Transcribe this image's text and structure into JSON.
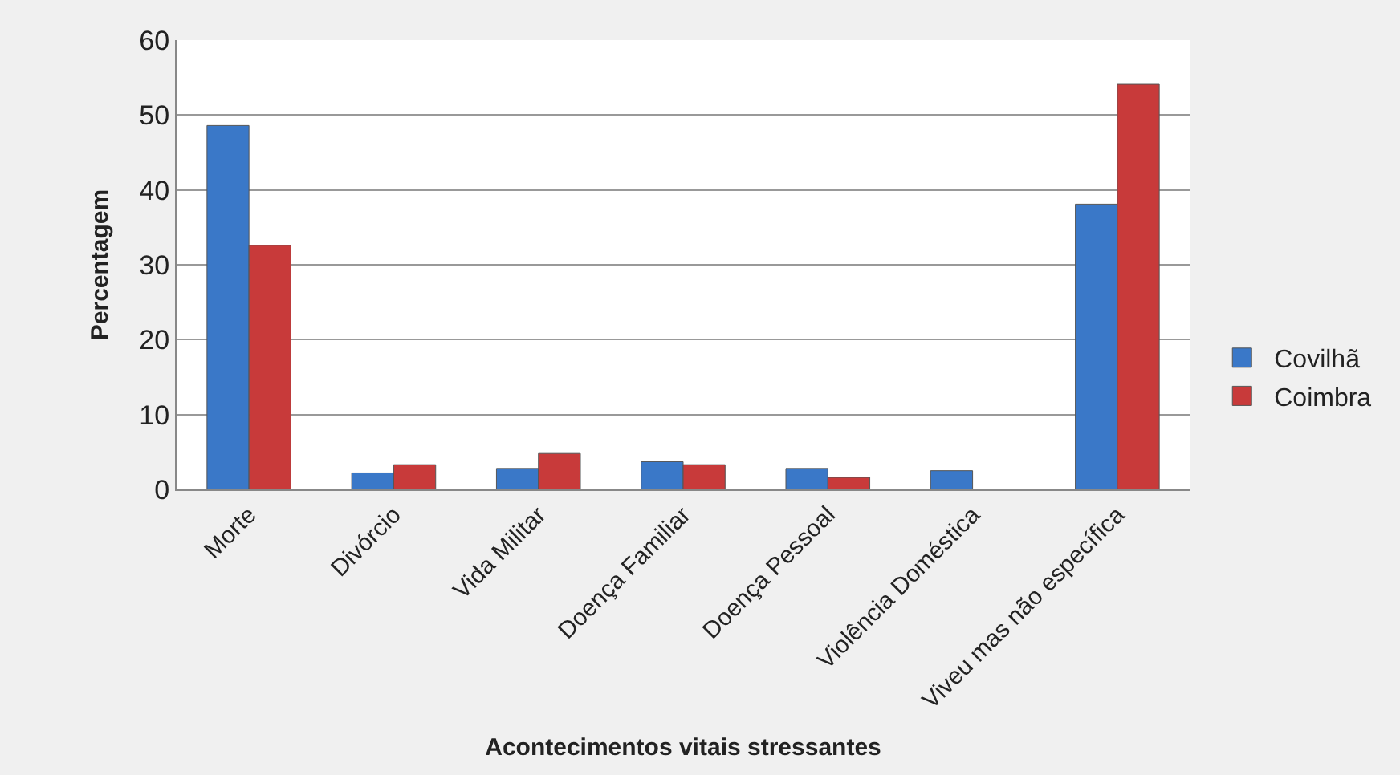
{
  "chart_data": {
    "type": "bar",
    "xlabel": "Acontecimentos vitais stressantes",
    "ylabel": "Percentagem",
    "categories": [
      "Morte",
      "Divórcio",
      "Vida Militar",
      "Doença Familiar",
      "Doença Pessoal",
      "Violência Doméstica",
      "Viveu mas não específica"
    ],
    "series": [
      {
        "name": "Covilhã",
        "color": "#3a78c8",
        "values": [
          48.6,
          2.2,
          2.8,
          3.7,
          2.8,
          2.5,
          38.1
        ]
      },
      {
        "name": "Coimbra",
        "color": "#c83a3a",
        "values": [
          32.6,
          3.3,
          4.8,
          3.3,
          1.6,
          null,
          54.1
        ]
      }
    ],
    "ylim": [
      0,
      60
    ],
    "yticks": [
      0,
      10,
      20,
      30,
      40,
      50,
      60
    ],
    "grid": "y",
    "legend": "right"
  }
}
